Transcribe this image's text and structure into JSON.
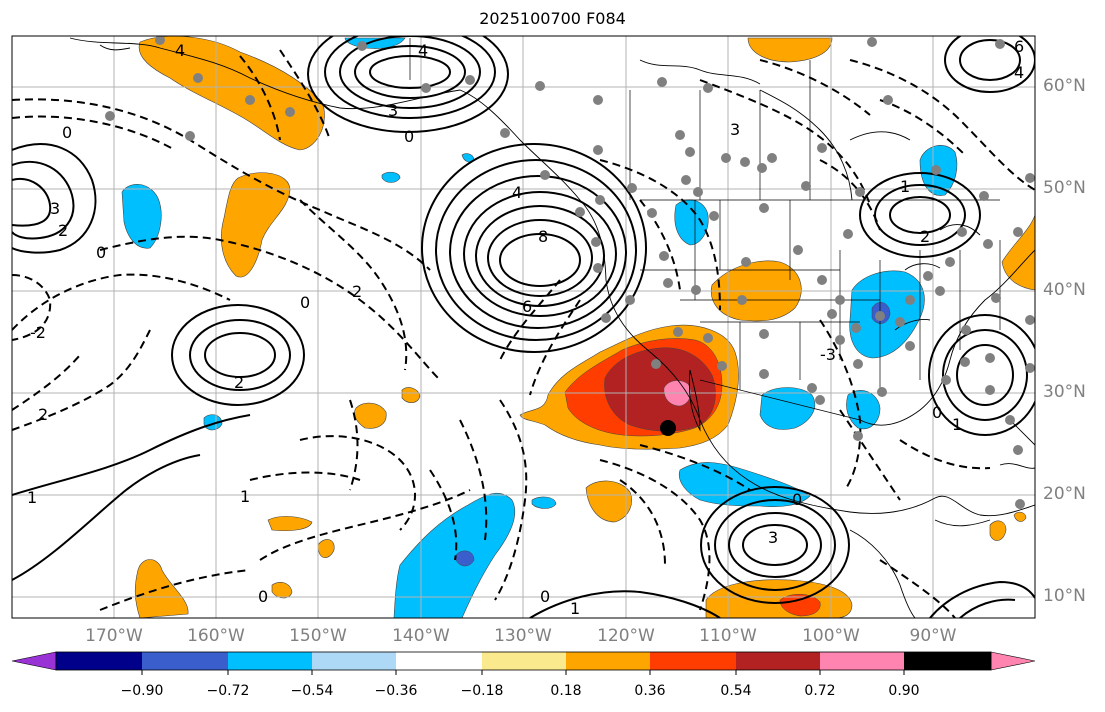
{
  "title": "2025100700 F084",
  "map": {
    "lon_labels": [
      "170°W",
      "160°W",
      "150°W",
      "140°W",
      "130°W",
      "120°W",
      "110°W",
      "100°W",
      "90°W"
    ],
    "lat_labels": [
      "60°N",
      "50°N",
      "40°N",
      "30°N",
      "20°N",
      "10°N"
    ],
    "contour_labels": {
      "c1": "4",
      "c2": "3",
      "c3": "0",
      "c4": "2",
      "c5": "4",
      "c6": "8",
      "c7": "6",
      "c8": "0",
      "c9": "2",
      "c10": "2",
      "c11": "1",
      "c12": "1",
      "c13": "3",
      "c14": "0",
      "c15": "1",
      "c16": "2",
      "c17": "0",
      "c18": "3",
      "c19": "4",
      "c20": "1",
      "c21": "0",
      "c22": "2",
      "c23": "0",
      "c24": "6",
      "c25": "4",
      "c26": "3",
      "c27": "-2",
      "c28": "0",
      "c29": "1",
      "c30": "0",
      "c31": "-3"
    },
    "marker": "black-dot"
  },
  "colorbar": {
    "tick_labels": [
      "−0.90",
      "−0.72",
      "−0.54",
      "−0.36",
      "−0.18",
      "0.18",
      "0.36",
      "0.54",
      "0.72",
      "0.90"
    ],
    "colors": [
      "#9a33d6",
      "#00008b",
      "#3a5fcd",
      "#00bfff",
      "#add8f6",
      "#ffffff",
      "#fbe98d",
      "#ffa500",
      "#ff3d00",
      "#b22222",
      "#ff85b0"
    ]
  }
}
